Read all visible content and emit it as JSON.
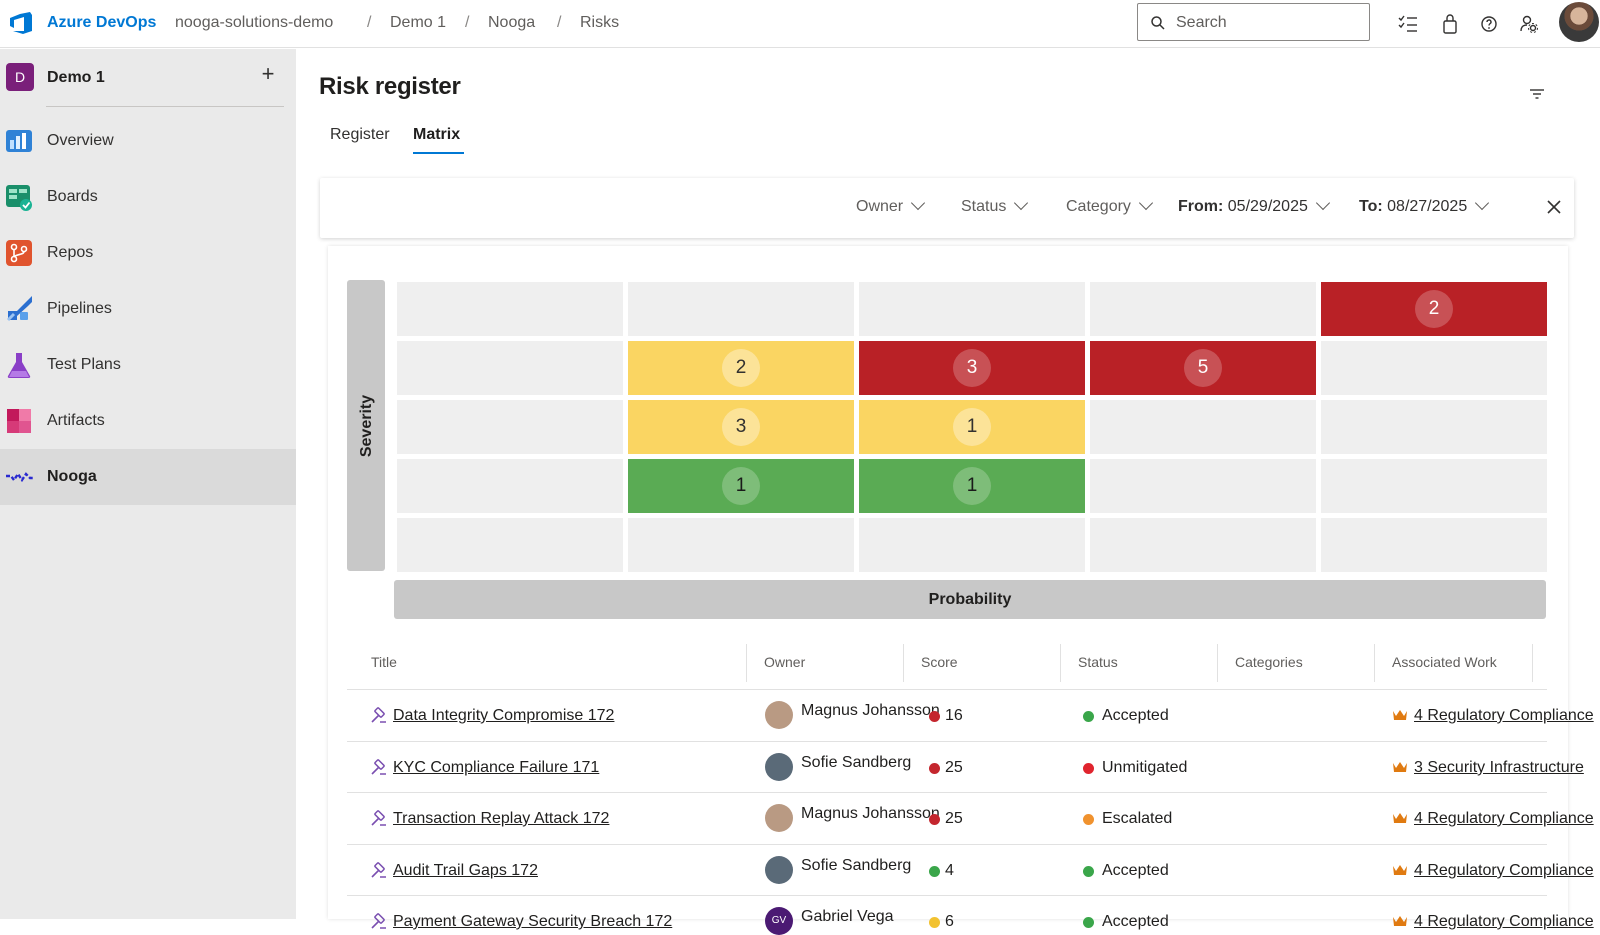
{
  "header": {
    "brand": "Azure DevOps",
    "breadcrumb": [
      "nooga-solutions-demo",
      "Demo 1",
      "Nooga",
      "Risks"
    ],
    "search_placeholder": "Search",
    "icons": [
      "work-items-icon",
      "shopping-bag-icon",
      "help-icon",
      "user-settings-icon",
      "avatar"
    ]
  },
  "sidebar": {
    "project_badge": "D",
    "project_name": "Demo 1",
    "add_label": "+",
    "items": [
      {
        "label": "Overview",
        "icon": "overview-icon"
      },
      {
        "label": "Boards",
        "icon": "boards-icon"
      },
      {
        "label": "Repos",
        "icon": "repos-icon"
      },
      {
        "label": "Pipelines",
        "icon": "pipelines-icon"
      },
      {
        "label": "Test Plans",
        "icon": "test-plans-icon"
      },
      {
        "label": "Artifacts",
        "icon": "artifacts-icon"
      },
      {
        "label": "Nooga",
        "icon": "nooga-icon",
        "selected": true
      }
    ]
  },
  "page": {
    "title": "Risk register",
    "tabs": [
      {
        "label": "Register",
        "active": false
      },
      {
        "label": "Matrix",
        "active": true
      }
    ]
  },
  "filters": {
    "owner": "Owner",
    "status": "Status",
    "category": "Category",
    "from_label": "From:",
    "from_value": "05/29/2025",
    "to_label": "To:",
    "to_value": "08/27/2025"
  },
  "matrix": {
    "severity_label": "Severity",
    "probability_label": "Probability",
    "colors": {
      "red": "#b92126",
      "yellow": "#fad562",
      "green": "#5aab54",
      "empty": "#efefef"
    },
    "rows": [
      [
        {
          "c": "empty",
          "n": ""
        },
        {
          "c": "empty",
          "n": ""
        },
        {
          "c": "empty",
          "n": ""
        },
        {
          "c": "empty",
          "n": ""
        },
        {
          "c": "red",
          "n": "2"
        }
      ],
      [
        {
          "c": "empty",
          "n": ""
        },
        {
          "c": "yellow",
          "n": "2"
        },
        {
          "c": "red",
          "n": "3"
        },
        {
          "c": "red",
          "n": "5"
        },
        {
          "c": "empty",
          "n": ""
        }
      ],
      [
        {
          "c": "empty",
          "n": ""
        },
        {
          "c": "yellow",
          "n": "3"
        },
        {
          "c": "yellow",
          "n": "1"
        },
        {
          "c": "empty",
          "n": ""
        },
        {
          "c": "empty",
          "n": ""
        }
      ],
      [
        {
          "c": "empty",
          "n": ""
        },
        {
          "c": "green",
          "n": "1"
        },
        {
          "c": "green",
          "n": "1"
        },
        {
          "c": "empty",
          "n": ""
        },
        {
          "c": "empty",
          "n": ""
        }
      ],
      [
        {
          "c": "empty",
          "n": ""
        },
        {
          "c": "empty",
          "n": ""
        },
        {
          "c": "empty",
          "n": ""
        },
        {
          "c": "empty",
          "n": ""
        },
        {
          "c": "empty",
          "n": ""
        }
      ]
    ]
  },
  "table": {
    "columns": [
      "Title",
      "Owner",
      "Score",
      "Status",
      "Categories",
      "Associated Work"
    ],
    "rows": [
      {
        "title": "Data Integrity Compromise 172",
        "owner": "Magnus Johansson",
        "avatar": "",
        "avatar_color": "#b99a83",
        "score": "16",
        "score_color": "#c4262e",
        "status": "Accepted",
        "status_color": "#3aa64a",
        "categories": "",
        "work": "4 Regulatory Compliance"
      },
      {
        "title": "KYC Compliance Failure 171",
        "owner": "Sofie Sandberg",
        "avatar": "",
        "avatar_color": "#5a6a78",
        "score": "25",
        "score_color": "#c4262e",
        "status": "Unmitigated",
        "status_color": "#e0242e",
        "categories": "",
        "work": "3 Security Infrastructure"
      },
      {
        "title": "Transaction Replay Attack 172",
        "owner": "Magnus Johansson",
        "avatar": "",
        "avatar_color": "#b99a83",
        "score": "25",
        "score_color": "#c4262e",
        "status": "Escalated",
        "status_color": "#f0922e",
        "categories": "",
        "work": "4 Regulatory Compliance"
      },
      {
        "title": "Audit Trail Gaps 172",
        "owner": "Sofie Sandberg",
        "avatar": "",
        "avatar_color": "#5a6a78",
        "score": "4",
        "score_color": "#3aa64a",
        "status": "Accepted",
        "status_color": "#3aa64a",
        "categories": "",
        "work": "4 Regulatory Compliance"
      },
      {
        "title": "Payment Gateway Security Breach 172",
        "owner": "Gabriel Vega",
        "avatar": "GV",
        "avatar_color": "#4b1a73",
        "score": "6",
        "score_color": "#f2c230",
        "status": "Accepted",
        "status_color": "#3aa64a",
        "categories": "",
        "work": "4 Regulatory Compliance"
      }
    ]
  }
}
